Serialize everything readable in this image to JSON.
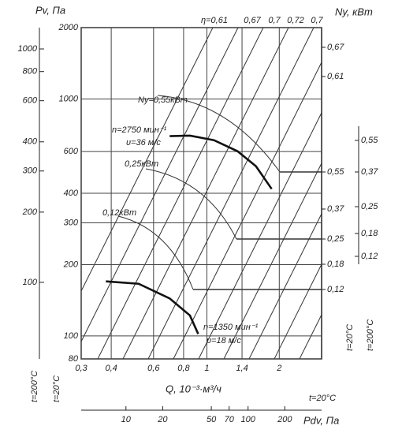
{
  "chart_data": {
    "type": "line",
    "log_x": true,
    "log_y": true,
    "grid": true,
    "y_label": "Pv, Па",
    "x_label": "Q, 10⁻³·м³/ч",
    "xlim": [
      0.3,
      3
    ],
    "xticks": [
      {
        "value": 0.3,
        "label": "0,3"
      },
      {
        "value": 0.4,
        "label": "0,4"
      },
      {
        "value": 0.6,
        "label": "0,6"
      },
      {
        "value": 0.8,
        "label": "0,8"
      },
      1,
      {
        "value": 1.4,
        "label": "1,4"
      },
      2
    ],
    "ylim": [
      80,
      2000
    ],
    "yticks": [
      80,
      100,
      200,
      300,
      400,
      600,
      1000,
      2000
    ],
    "y2lim": [
      47,
      1234
    ],
    "y2ticks": [
      100,
      200,
      300,
      400,
      600,
      800,
      1000
    ],
    "left_notes": [
      "t=200°C",
      "t=20°C"
    ],
    "x2_label": "Pdv, Па",
    "x2_note": "t=20°C",
    "x2lim": [
      4.3,
      400
    ],
    "x2ticks": [
      10,
      20,
      50,
      70,
      100,
      200
    ],
    "power_axis": {
      "title": "Ny, кВт",
      "notes": [
        "t=20°C",
        "t=200°C"
      ],
      "t20_ticks": [
        {
          "value": 0.67,
          "label": "0,67"
        },
        {
          "value": 0.61,
          "label": "0,61"
        },
        {
          "value": 0.55,
          "label": "0,55"
        },
        {
          "value": 0.37,
          "label": "0,37"
        },
        {
          "value": 0.25,
          "label": "0,25"
        },
        {
          "value": 0.18,
          "label": "0,18"
        },
        {
          "value": 0.12,
          "label": "0,12"
        }
      ],
      "t200_ticks": [
        {
          "value": 0.55,
          "label": "0,55"
        },
        {
          "value": 0.37,
          "label": "0,37"
        },
        {
          "value": 0.25,
          "label": "0,25"
        },
        {
          "value": 0.18,
          "label": "0,18"
        },
        {
          "value": 0.12,
          "label": "0,12"
        }
      ]
    },
    "efficiency_labels": [
      "η=0,61",
      "0,67",
      "0,7",
      "0,72",
      "0,7"
    ],
    "power_curve_labels": [
      "Ny=0,55кВт",
      "0,25кВт",
      "0,12кВт"
    ],
    "series": [
      {
        "name": "n=2750 мин⁻¹",
        "speed": "υ=36 м/с",
        "color": "#111",
        "x": [
          0.7,
          0.85,
          1.07,
          1.34,
          1.6,
          1.86
        ],
        "values": [
          697,
          700,
          670,
          602,
          520,
          417
        ]
      },
      {
        "name": "n=1350 мин⁻¹",
        "speed": "υ=18 м/с",
        "color": "#111",
        "x": [
          0.38,
          0.52,
          0.7,
          0.85,
          0.92
        ],
        "values": [
          170,
          166,
          144,
          122,
          102
        ]
      }
    ]
  }
}
